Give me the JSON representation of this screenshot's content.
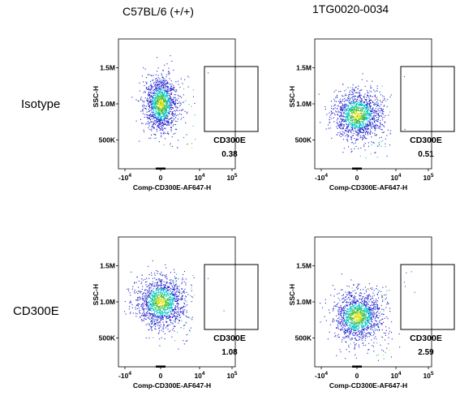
{
  "columns": [
    "C57BL/6 (+/+)",
    "1TG0020-0034"
  ],
  "rows": [
    "Isotype",
    "CD300E"
  ],
  "chart_data": [
    {
      "type": "scatter",
      "row": "Isotype",
      "column": "C57BL/6 (+/+)",
      "xlabel": "Comp-CD300E-AF647-H",
      "ylabel": "SSC-H",
      "xticks": [
        "-10^4",
        "0",
        "10^4",
        "10^5"
      ],
      "yticks": [
        "500K",
        "1.0M",
        "1.5M"
      ],
      "gate": {
        "name": "CD300E",
        "value": "0.38"
      },
      "population": {
        "center_x": 0.0,
        "center_y": 1.0,
        "spread": "narrow"
      }
    },
    {
      "type": "scatter",
      "row": "Isotype",
      "column": "1TG0020-0034",
      "xlabel": "Comp-CD300E-AF647-H",
      "ylabel": "SSC-H",
      "xticks": [
        "-10^4",
        "0",
        "10^4",
        "10^5"
      ],
      "yticks": [
        "500K",
        "1.0M",
        "1.5M"
      ],
      "gate": {
        "name": "CD300E",
        "value": "0.51"
      },
      "population": {
        "center_x": 0.0,
        "center_y": 0.85,
        "spread": "wide"
      }
    },
    {
      "type": "scatter",
      "row": "CD300E",
      "column": "C57BL/6 (+/+)",
      "xlabel": "Comp-CD300E-AF647-H",
      "ylabel": "SSC-H",
      "xticks": [
        "-10^4",
        "0",
        "10^4",
        "10^5"
      ],
      "yticks": [
        "500K",
        "1.0M",
        "1.5M"
      ],
      "gate": {
        "name": "CD300E",
        "value": "1.08"
      },
      "population": {
        "center_x": 0.0,
        "center_y": 1.0,
        "spread": "wide"
      }
    },
    {
      "type": "scatter",
      "row": "CD300E",
      "column": "1TG0020-0034",
      "xlabel": "Comp-CD300E-AF647-H",
      "ylabel": "SSC-H",
      "xticks": [
        "-10^4",
        "0",
        "10^4",
        "10^5"
      ],
      "yticks": [
        "500K",
        "1.0M",
        "1.5M"
      ],
      "gate": {
        "name": "CD300E",
        "value": "2.59"
      },
      "population": {
        "center_x": 0.0,
        "center_y": 0.8,
        "spread": "wide"
      }
    }
  ],
  "colors": {
    "low": "#2020d0",
    "mid": "#00c8c8",
    "high": "#40c040",
    "peak": "#e0e000",
    "gate": "#000000"
  }
}
